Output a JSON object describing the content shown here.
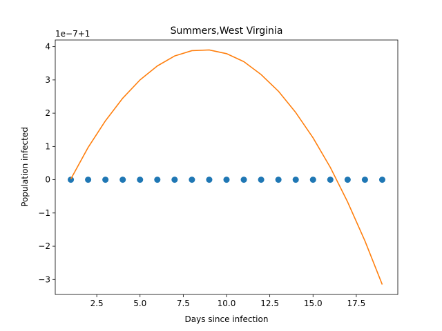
{
  "chart_data": {
    "type": "scatter",
    "title": "Summers,West Virginia",
    "xlabel": "Days since infection",
    "ylabel": "Population infected",
    "offset_label": "1e−7+1",
    "xlim": [
      0.1,
      19.9
    ],
    "ylim": [
      -3.45,
      4.2
    ],
    "x_ticks": [
      2.5,
      5.0,
      7.5,
      10.0,
      12.5,
      15.0,
      17.5
    ],
    "x_tick_labels": [
      "2.5",
      "5.0",
      "7.5",
      "10.0",
      "12.5",
      "15.0",
      "17.5"
    ],
    "y_ticks": [
      -3,
      -2,
      -1,
      0,
      1,
      2,
      3,
      4
    ],
    "y_tick_labels": [
      "−3",
      "−2",
      "−1",
      "0",
      "1",
      "2",
      "3",
      "4"
    ],
    "grid": false,
    "series": [
      {
        "kind": "scatter",
        "color": "#1f77b4",
        "x": [
          1,
          2,
          3,
          4,
          5,
          6,
          7,
          8,
          9,
          10,
          11,
          12,
          13,
          14,
          15,
          16,
          17,
          18,
          19
        ],
        "y": [
          0,
          0,
          0,
          0,
          0,
          0,
          0,
          0,
          0,
          0,
          0,
          0,
          0,
          0,
          0,
          0,
          0,
          0,
          0
        ]
      },
      {
        "kind": "line",
        "color": "#ff7f0e",
        "x": [
          1,
          2,
          3,
          4,
          5,
          6,
          7,
          8,
          9,
          10,
          11,
          12,
          13,
          14,
          15,
          16,
          17,
          18,
          19
        ],
        "y": [
          0.02,
          0.97,
          1.77,
          2.45,
          3.0,
          3.42,
          3.72,
          3.88,
          3.9,
          3.79,
          3.55,
          3.16,
          2.66,
          2.02,
          1.26,
          0.37,
          -0.67,
          -1.84,
          -3.15
        ]
      }
    ]
  }
}
